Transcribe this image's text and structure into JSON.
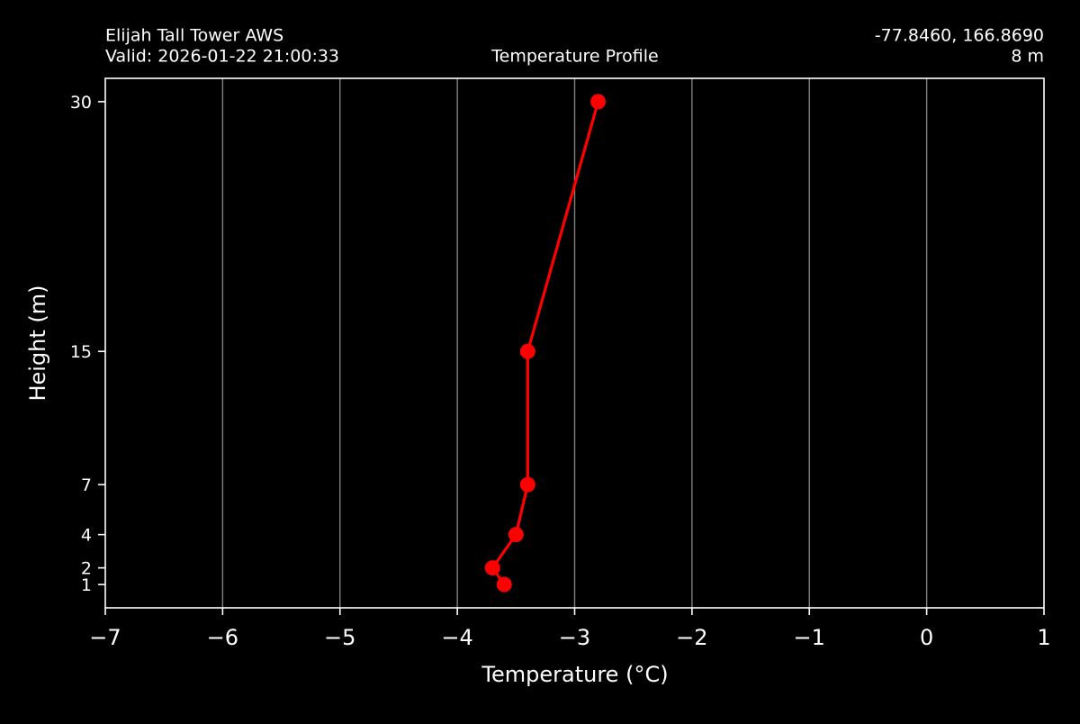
{
  "header": {
    "station_name": "Elijah Tall Tower AWS",
    "valid_time": "Valid: 2026-01-22 21:00:33",
    "coordinates": "-77.8460, 166.8690",
    "elevation": "8 m"
  },
  "colors": {
    "background": "#000000",
    "series": "#ff0000",
    "axes": "#ffffff",
    "grid": "#808080"
  },
  "chart_data": {
    "type": "line",
    "title": "Temperature Profile",
    "xlabel": "Temperature ($^\\circ$C)",
    "xlabel_display": "Temperature (°C)",
    "ylabel": "Height (m)",
    "xlim": [
      -7,
      1
    ],
    "ylim": [
      -0.4,
      31.4
    ],
    "x_ticks": [
      -7,
      -6,
      -5,
      -4,
      -3,
      -2,
      -1,
      0,
      1
    ],
    "x_tick_labels": [
      "−7",
      "−6",
      "−5",
      "−4",
      "−3",
      "−2",
      "−1",
      "0",
      "1"
    ],
    "y_ticks": [
      1,
      2,
      4,
      7,
      15,
      30
    ],
    "y_tick_labels": [
      "1",
      "2",
      "4",
      "7",
      "15",
      "30"
    ],
    "grid": "vertical",
    "markers": "circle",
    "series": [
      {
        "points": [
          {
            "height": 1,
            "temperature": -3.6
          },
          {
            "height": 2,
            "temperature": -3.7
          },
          {
            "height": 4,
            "temperature": -3.5
          },
          {
            "height": 7,
            "temperature": -3.4
          },
          {
            "height": 15,
            "temperature": -3.4
          },
          {
            "height": 30,
            "temperature": -2.8
          }
        ]
      }
    ]
  }
}
